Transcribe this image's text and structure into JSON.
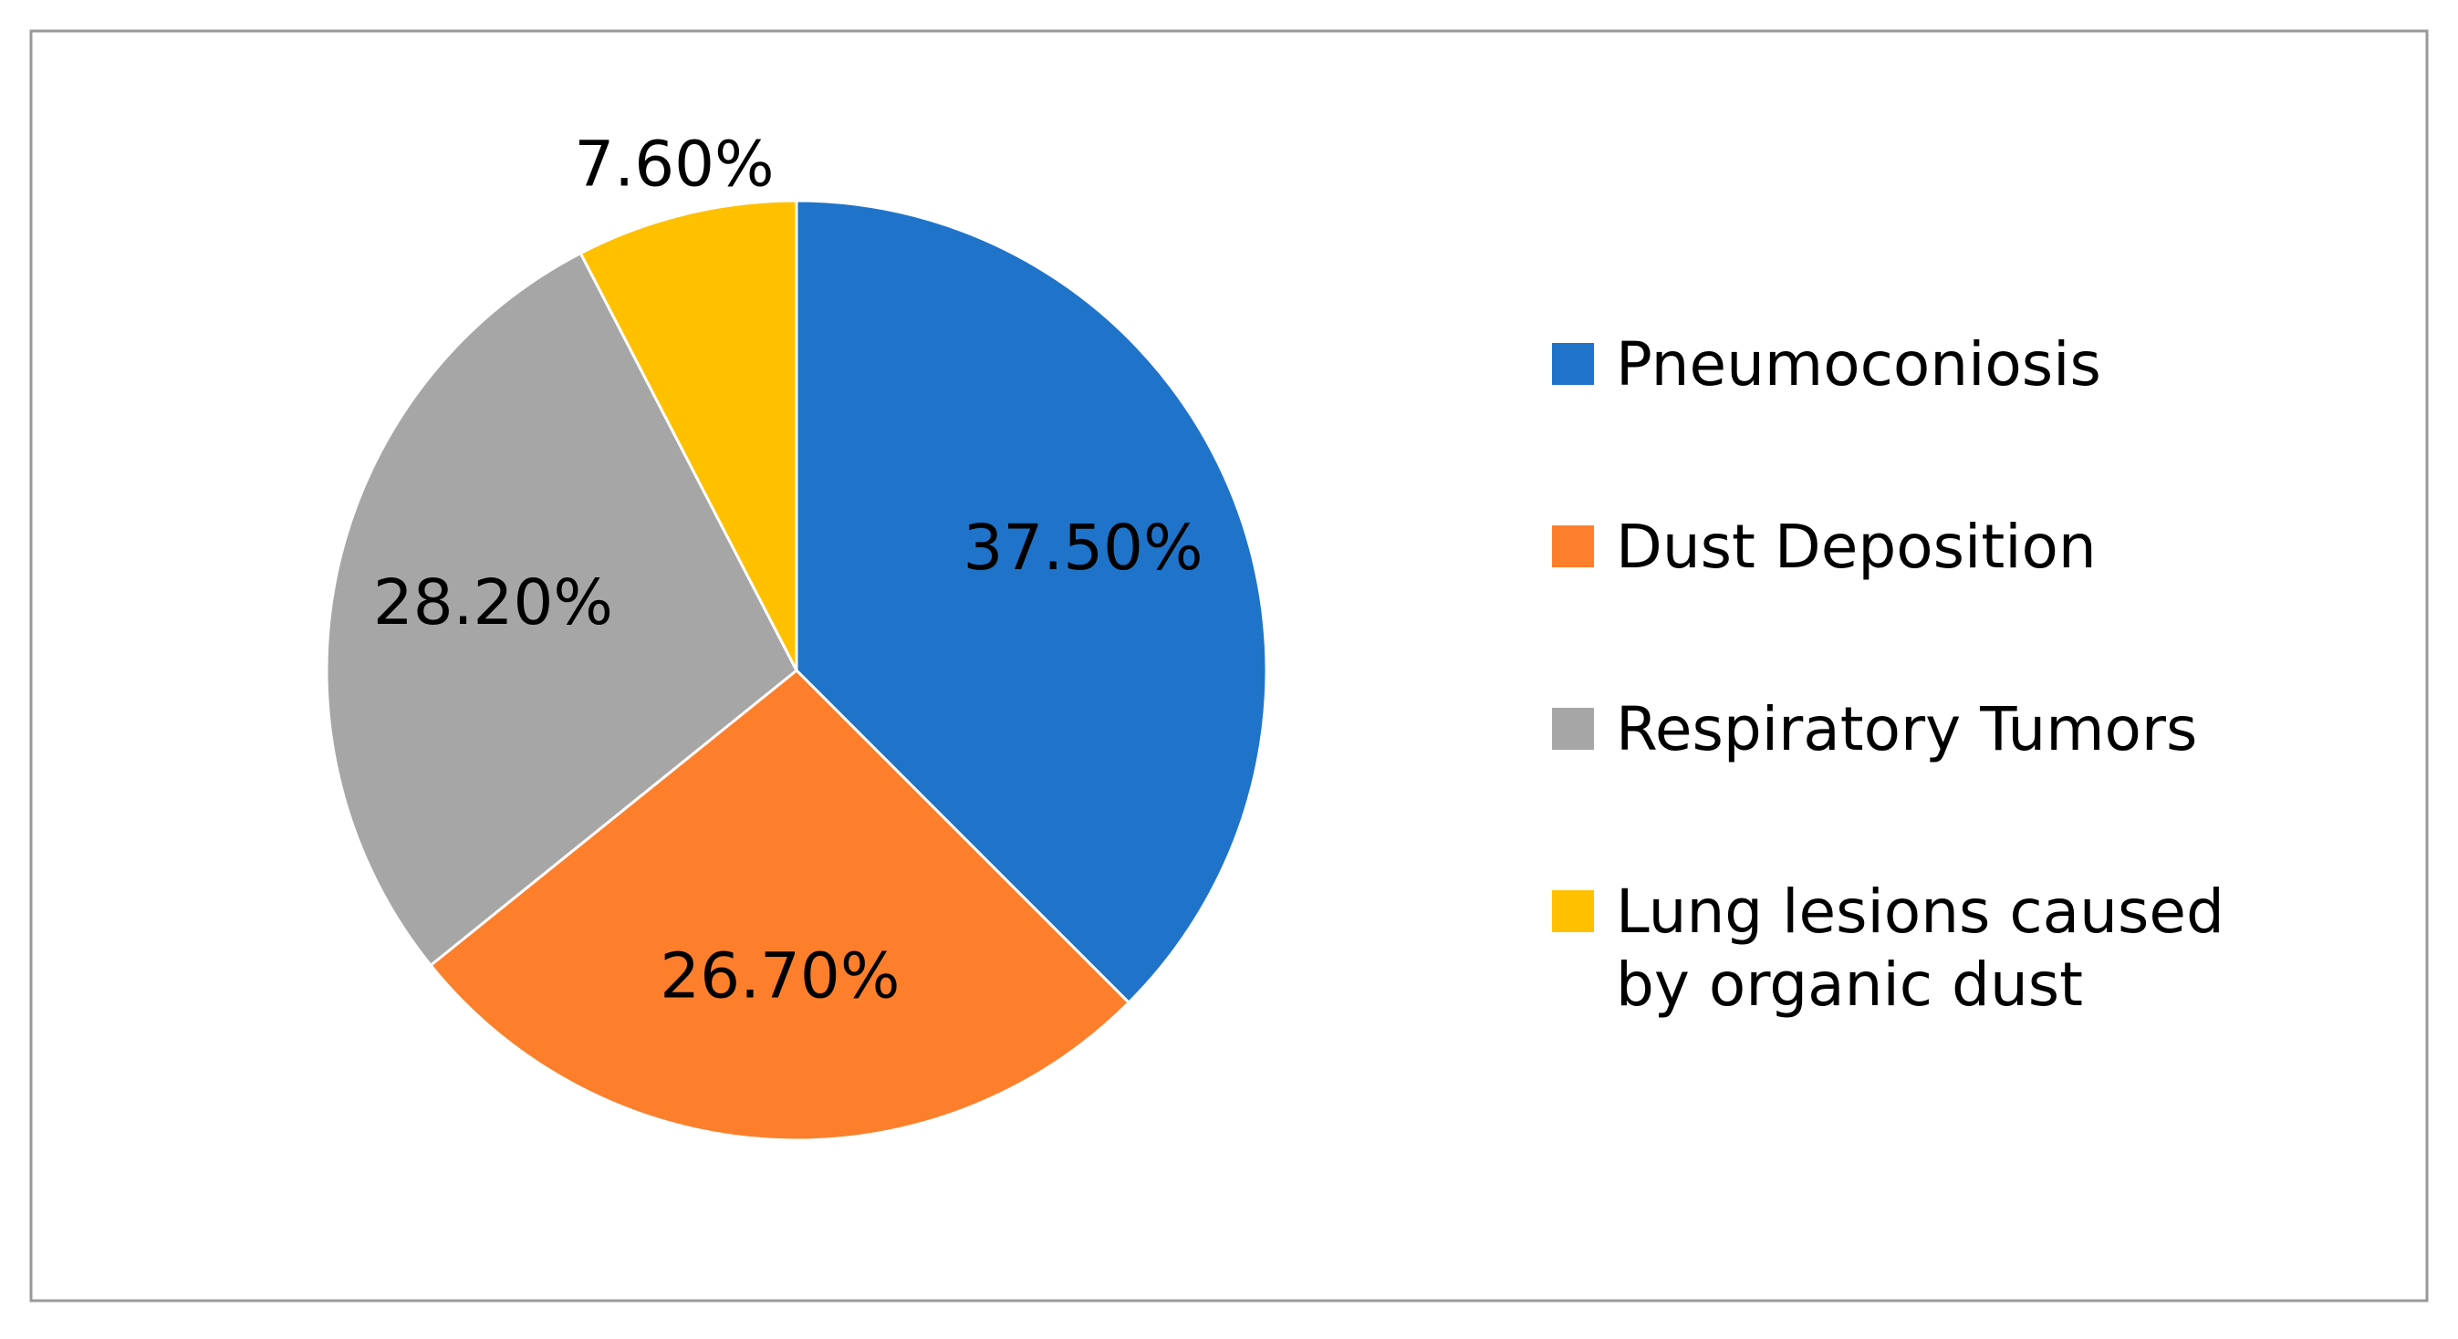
{
  "chart_data": {
    "type": "pie",
    "categories": [
      "Pneumoconiosis",
      "Dust Deposition",
      "Respiratory Tumors",
      "Lung lesions caused by organic dust"
    ],
    "values": [
      37.5,
      26.7,
      28.2,
      7.6
    ],
    "value_labels": [
      "37.50%",
      "26.70%",
      "28.20%",
      "7.60%"
    ],
    "colors": [
      "#1f74c9",
      "#fd7f2c",
      "#a6a6a6",
      "#ffc000"
    ],
    "legend": "right"
  }
}
